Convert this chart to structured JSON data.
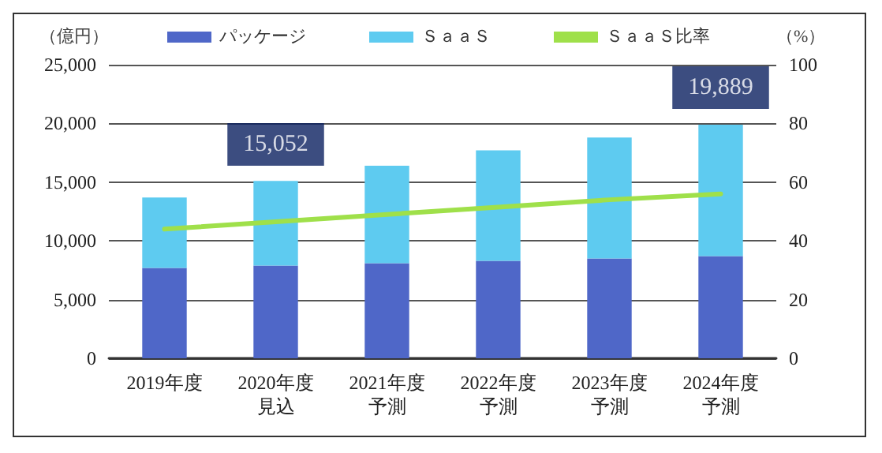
{
  "chart_data": {
    "type": "bar",
    "stacked": true,
    "ylabel": "（億円）",
    "y2label": "（%）",
    "categories": [
      "2019年度",
      "2020年度見込",
      "2021年度予測",
      "2022年度予測",
      "2023年度予測",
      "2024年度予測"
    ],
    "series": [
      {
        "name": "パッケージ",
        "color": "#4f67c8",
        "values": [
          7700,
          7900,
          8100,
          8300,
          8500,
          8700
        ]
      },
      {
        "name": "ＳａａＳ",
        "color": "#5ecbf0",
        "values": [
          6000,
          7200,
          8300,
          9400,
          10300,
          11200
        ]
      },
      {
        "name": "ＳａａＳ比率",
        "type": "line",
        "axis": "y2",
        "color": "#9fe04a",
        "marker": "none",
        "values": [
          44,
          46.5,
          49,
          51.5,
          54,
          56
        ]
      }
    ],
    "ylim": [
      0,
      25000
    ],
    "yticks": [
      0,
      {
        "value": 5000,
        "label": "5,000"
      },
      {
        "value": 10000,
        "label": "10,000"
      },
      {
        "value": 15000,
        "label": "15,000"
      },
      {
        "value": 20000,
        "label": "20,000"
      },
      {
        "value": 25000,
        "label": "25,000"
      }
    ],
    "y2lim": [
      0,
      100
    ],
    "y2ticks": [
      0,
      20,
      40,
      60,
      80,
      100
    ],
    "annotations": [
      {
        "text": "15,052",
        "x": "2020年度見込",
        "y": 15052
      },
      {
        "text": "19,889",
        "x": "2024年度予測",
        "y": 19889
      }
    ],
    "grid": "y",
    "legend": "top"
  }
}
